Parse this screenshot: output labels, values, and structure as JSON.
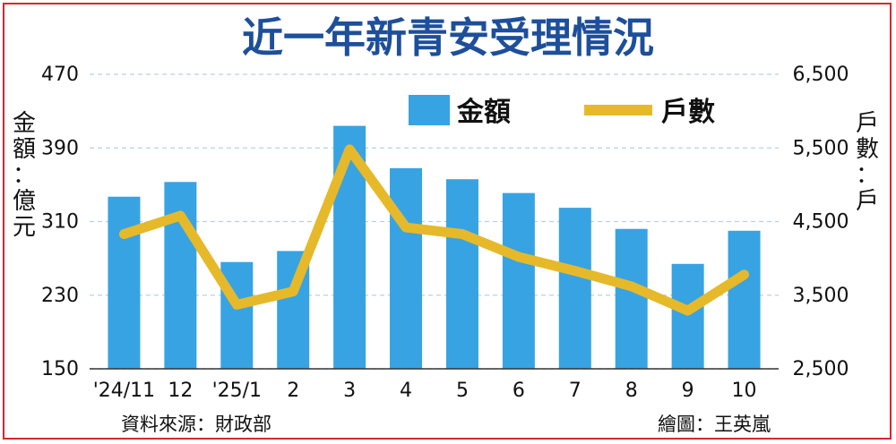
{
  "header": {
    "title": "近一年新青安受理情況"
  },
  "legend": {
    "bar": "金額",
    "line": "戶數"
  },
  "axes": {
    "left_title": "金額：億元",
    "right_title": "戶數：戶"
  },
  "footer": {
    "source": "資料來源：財政部",
    "credit": "繪圖：王英嵐"
  },
  "colors": {
    "bar": "#37a3e3",
    "line": "#e6b92a",
    "title": "#1d4f9a",
    "border": "#d8262e",
    "grid": "#b9d0e2"
  },
  "chart_data": {
    "type": "bar",
    "title": "近一年新青安受理情況",
    "categories": [
      "'24/11",
      "12",
      "'25/1",
      "2",
      "3",
      "4",
      "5",
      "6",
      "7",
      "8",
      "9",
      "10"
    ],
    "series": [
      {
        "name": "金額",
        "type": "bar",
        "axis": "left",
        "values": [
          337,
          353,
          266,
          278,
          414,
          368,
          356,
          341,
          325,
          302,
          264,
          300
        ]
      },
      {
        "name": "戶數",
        "type": "line",
        "axis": "right",
        "values": [
          4330,
          4580,
          3370,
          3550,
          5480,
          4420,
          4330,
          4020,
          3830,
          3620,
          3290,
          3780
        ]
      }
    ],
    "ylabel": "金額：億元",
    "y2label": "戶數：戶",
    "ylim": [
      150,
      470
    ],
    "y2lim": [
      2500,
      6500
    ],
    "yticks": [
      "150",
      "230",
      "310",
      "390",
      "470"
    ],
    "y2ticks": [
      "2,500",
      "3,500",
      "4,500",
      "5,500",
      "6,500"
    ],
    "grid": true,
    "legend": "top-right"
  }
}
